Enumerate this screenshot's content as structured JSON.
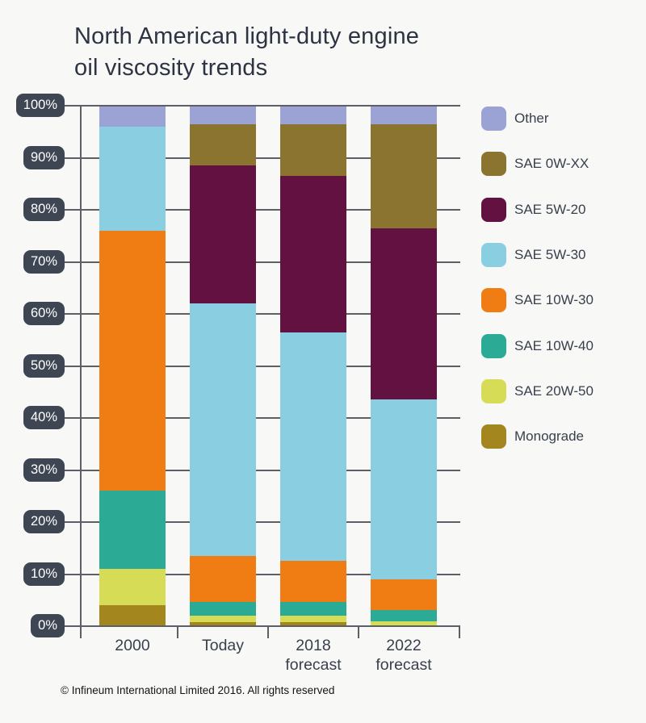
{
  "page": {
    "background": "#f8f8f7"
  },
  "header": {
    "title": "North American light-duty engine\noil viscosity trends"
  },
  "footer": {
    "copyright": "© Infineum International Limited 2016. All rights reserved"
  },
  "chart_data": {
    "type": "bar",
    "stacked": true,
    "title": "North American light-duty engine oil viscosity trends",
    "categories": [
      "2000",
      "Today",
      "2018\nforecast",
      "2022\nforecast"
    ],
    "series": [
      {
        "name": "Monograde",
        "color": "#a3861e",
        "values": [
          4,
          0.7,
          0.8,
          0
        ]
      },
      {
        "name": "SAE 20W-50",
        "color": "#d6dc55",
        "values": [
          7,
          1.3,
          1.2,
          0.9
        ]
      },
      {
        "name": "SAE 10W-40",
        "color": "#2bab96",
        "values": [
          15,
          2.7,
          2.6,
          2.2
        ]
      },
      {
        "name": "SAE 10W-30",
        "color": "#f07d13",
        "values": [
          50,
          8.8,
          7.9,
          5.9
        ]
      },
      {
        "name": "SAE 5W-30",
        "color": "#89cfe1",
        "values": [
          20,
          48.5,
          44,
          34.5
        ]
      },
      {
        "name": "SAE 5W-20",
        "color": "#621140",
        "values": [
          0,
          26.5,
          30,
          33
        ]
      },
      {
        "name": "SAE 0W-XX",
        "color": "#8a7430",
        "values": [
          0,
          8,
          10,
          20
        ]
      },
      {
        "name": "Other",
        "color": "#9aa3d3",
        "values": [
          4,
          3.5,
          3.5,
          3.5
        ]
      }
    ],
    "ylim": [
      0,
      100
    ],
    "ytick_labels": [
      "0%",
      "10%",
      "20%",
      "30%",
      "40%",
      "50%",
      "60%",
      "70%",
      "80%",
      "90%",
      "100%"
    ],
    "grid": true,
    "legend_position": "right",
    "legend_order": [
      "Other",
      "SAE 0W-XX",
      "SAE 5W-20",
      "SAE 5W-30",
      "SAE 10W-30",
      "SAE 10W-40",
      "SAE 20W-50",
      "Monograde"
    ],
    "colors": {
      "background": "#f8f8f7",
      "gridline": "#5c6066",
      "axis_badge": "#3e4553",
      "axis_badge_text": "#ffffff",
      "axis_label_text": "#39404d",
      "title_text": "#2c3342"
    }
  }
}
